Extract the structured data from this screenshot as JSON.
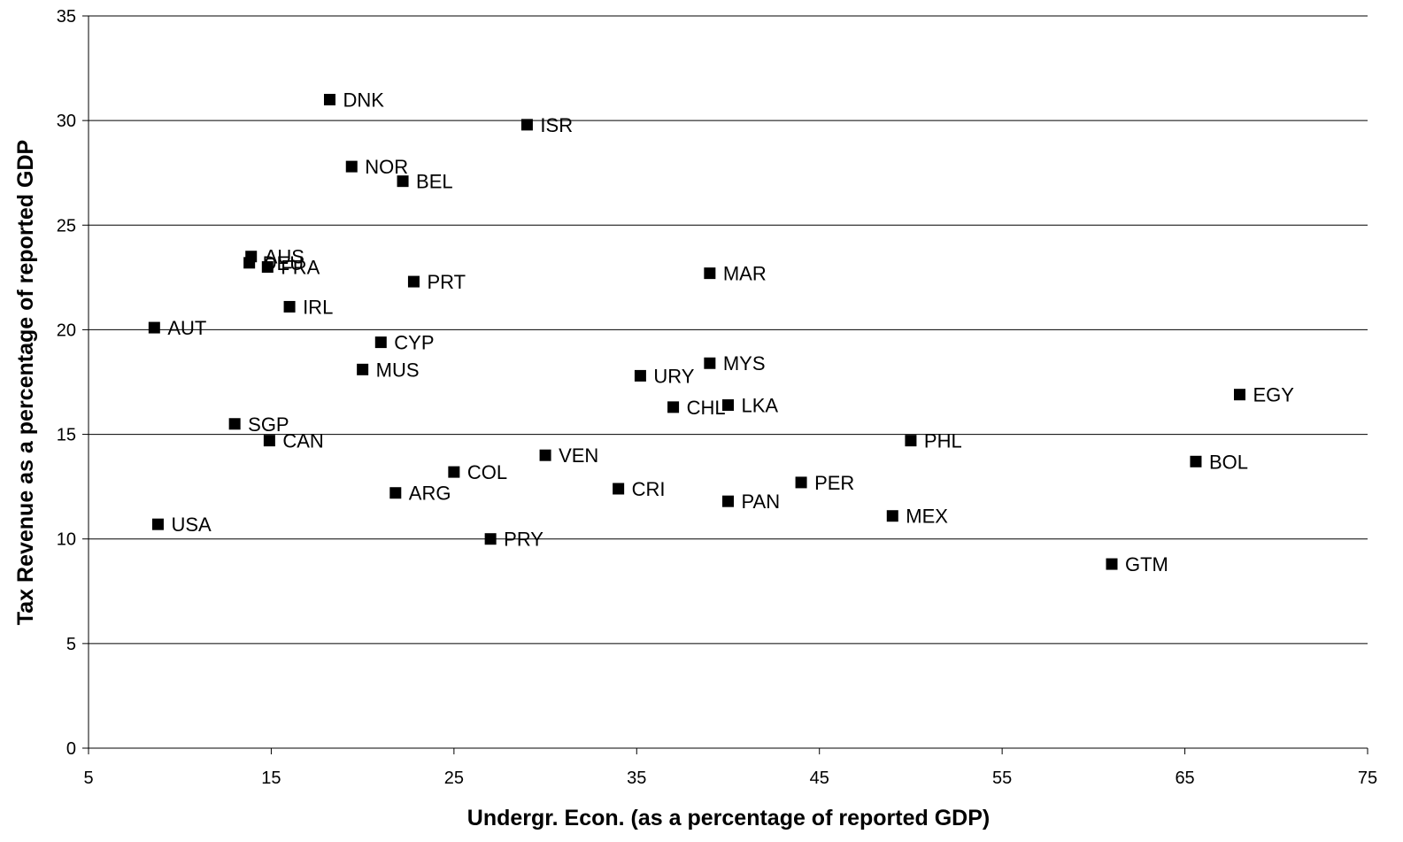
{
  "chart_data": {
    "type": "scatter",
    "title": "",
    "xlabel": "Undergr. Econ. (as a percentage of reported GDP)",
    "ylabel": "Tax Revenue as a percentage of reported GDP",
    "xlim": [
      5,
      75
    ],
    "ylim": [
      0,
      35
    ],
    "xticks": [
      5,
      15,
      25,
      35,
      45,
      55,
      65,
      75
    ],
    "yticks": [
      0,
      5,
      10,
      15,
      20,
      25,
      30,
      35
    ],
    "grid": "horizontal",
    "legend": "none",
    "marker_color": "#000000",
    "points": [
      {
        "label": "DNK",
        "x": 18.2,
        "y": 31.0
      },
      {
        "label": "ISR",
        "x": 29.0,
        "y": 29.8
      },
      {
        "label": "NOR",
        "x": 19.4,
        "y": 27.8
      },
      {
        "label": "BEL",
        "x": 22.2,
        "y": 27.1
      },
      {
        "label": "AUS",
        "x": 13.9,
        "y": 23.5
      },
      {
        "label": "DEU",
        "x": 13.8,
        "y": 23.2
      },
      {
        "label": "FRA",
        "x": 14.8,
        "y": 23.0
      },
      {
        "label": "PRT",
        "x": 22.8,
        "y": 22.3
      },
      {
        "label": "MAR",
        "x": 39.0,
        "y": 22.7
      },
      {
        "label": "IRL",
        "x": 16.0,
        "y": 21.1
      },
      {
        "label": "AUT",
        "x": 8.6,
        "y": 20.1
      },
      {
        "label": "CYP",
        "x": 21.0,
        "y": 19.4
      },
      {
        "label": "MUS",
        "x": 20.0,
        "y": 18.1
      },
      {
        "label": "MYS",
        "x": 39.0,
        "y": 18.4
      },
      {
        "label": "URY",
        "x": 35.2,
        "y": 17.8
      },
      {
        "label": "CHL",
        "x": 37.0,
        "y": 16.3
      },
      {
        "label": "LKA",
        "x": 40.0,
        "y": 16.4
      },
      {
        "label": "EGY",
        "x": 68.0,
        "y": 16.9
      },
      {
        "label": "SGP",
        "x": 13.0,
        "y": 15.5
      },
      {
        "label": "CAN",
        "x": 14.9,
        "y": 14.7
      },
      {
        "label": "PHL",
        "x": 50.0,
        "y": 14.7
      },
      {
        "label": "VEN",
        "x": 30.0,
        "y": 14.0
      },
      {
        "label": "BOL",
        "x": 65.6,
        "y": 13.7
      },
      {
        "label": "COL",
        "x": 25.0,
        "y": 13.2
      },
      {
        "label": "PER",
        "x": 44.0,
        "y": 12.7
      },
      {
        "label": "CRI",
        "x": 34.0,
        "y": 12.4
      },
      {
        "label": "ARG",
        "x": 21.8,
        "y": 12.2
      },
      {
        "label": "PAN",
        "x": 40.0,
        "y": 11.8
      },
      {
        "label": "MEX",
        "x": 49.0,
        "y": 11.1
      },
      {
        "label": "USA",
        "x": 8.8,
        "y": 10.7
      },
      {
        "label": "PRY",
        "x": 27.0,
        "y": 10.0
      },
      {
        "label": "GTM",
        "x": 61.0,
        "y": 8.8
      }
    ]
  }
}
